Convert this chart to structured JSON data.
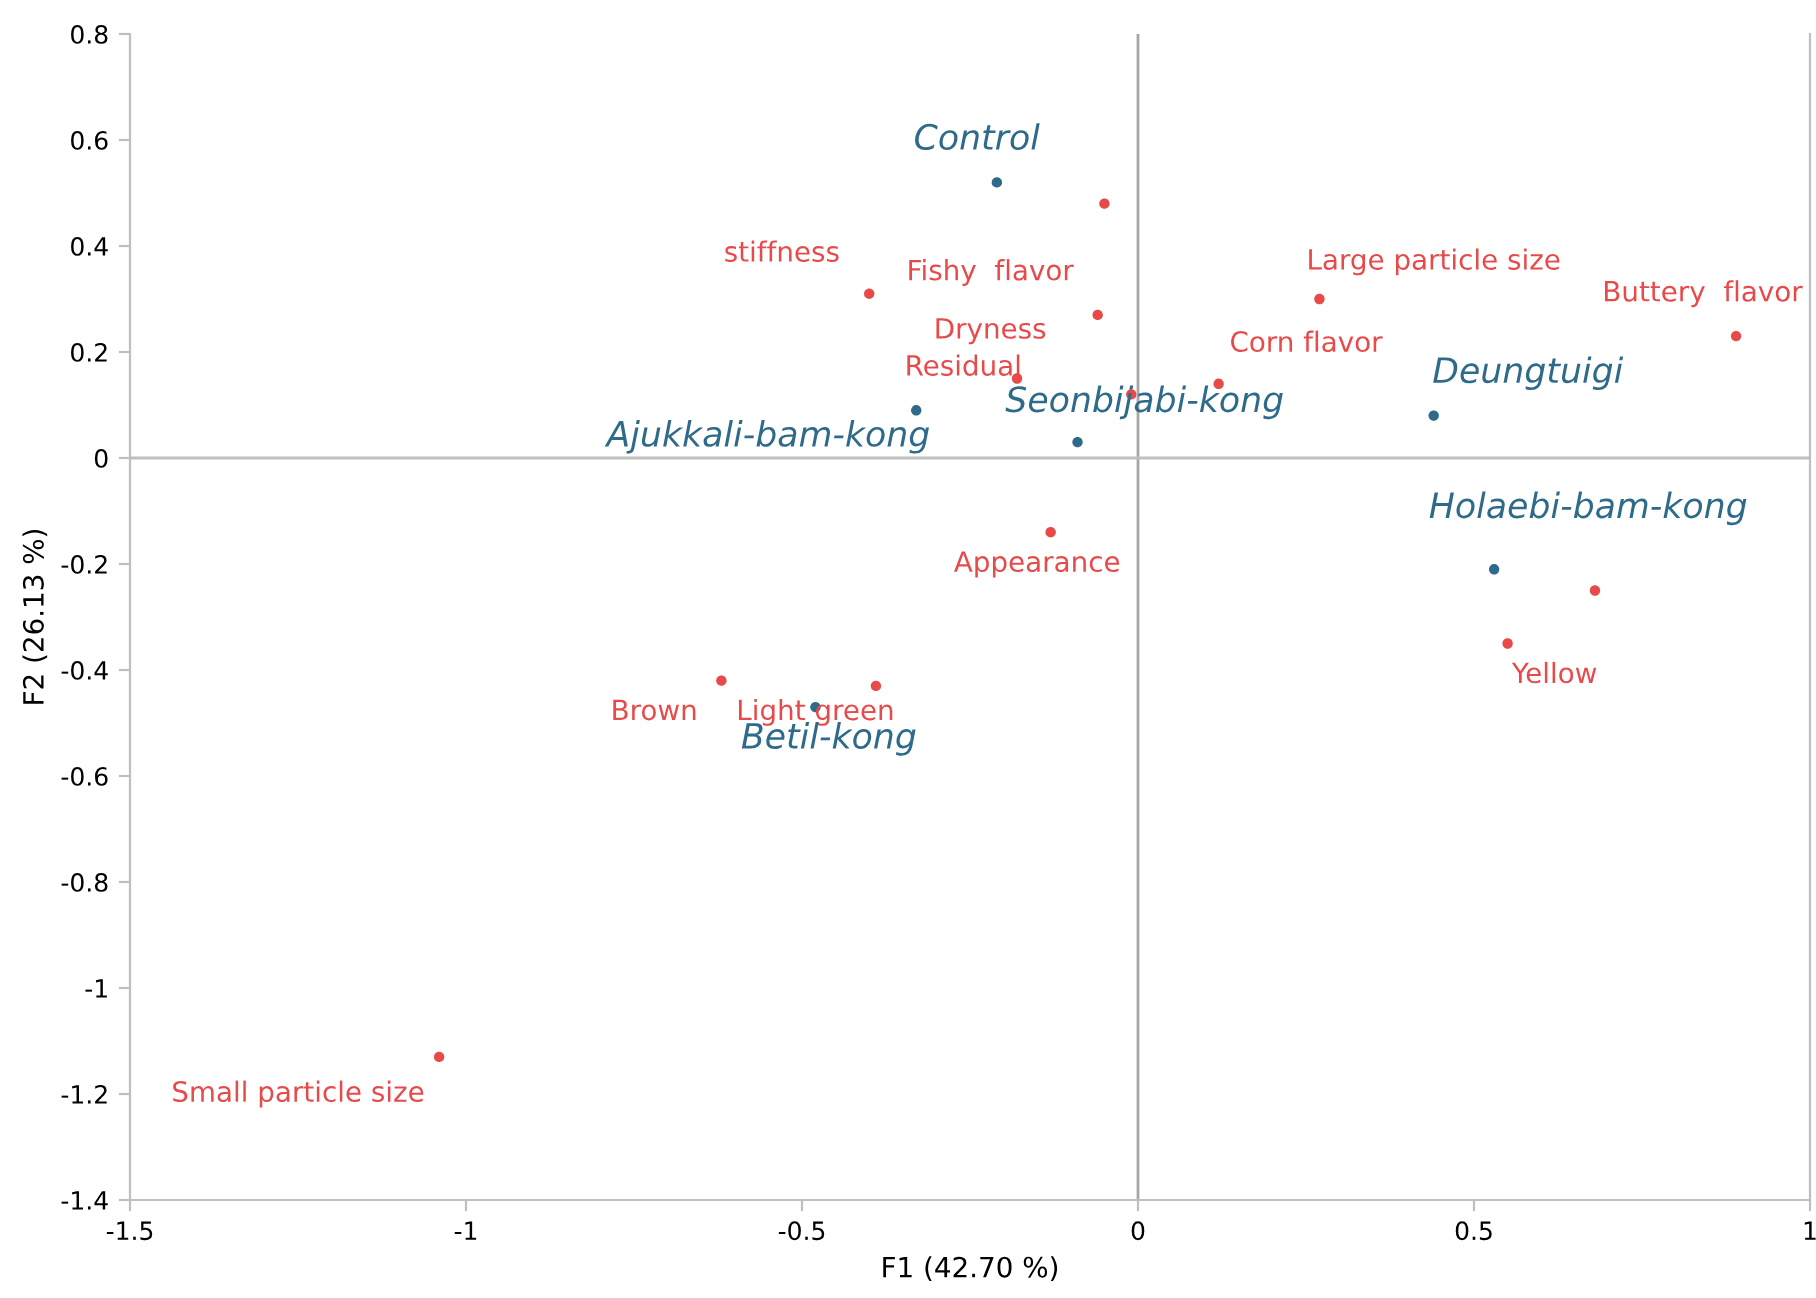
{
  "chart_data": {
    "type": "scatter",
    "xlabel": "F1 (42.70 %)",
    "ylabel": "F2 (26.13 %)",
    "xlim": [
      -1.5,
      1
    ],
    "xticks": [
      -1.5,
      -1,
      -0.5,
      0,
      0.5,
      1
    ],
    "ylim": [
      -1.4,
      0.8
    ],
    "yticks": [
      -1.4,
      -1.2,
      -1,
      -0.8,
      -0.6,
      -0.4,
      -0.2,
      0,
      0.2,
      0.4,
      0.6,
      0.8
    ],
    "grid": false,
    "legend": false,
    "marker": "circle",
    "ref_lines": [
      {
        "axis": "x",
        "value": 0,
        "color": "#a6a6a6"
      },
      {
        "axis": "y",
        "value": 0,
        "color": "#bfbfbf"
      }
    ],
    "series": [
      {
        "color": "#e84a4a",
        "x": [
          -0.05,
          -0.4,
          -0.06,
          -0.18,
          -0.01,
          0.12,
          0.27,
          0.89,
          -0.13,
          -0.62,
          -0.39,
          0.55,
          0.68,
          -1.04
        ],
        "values": [
          0.48,
          0.31,
          0.27,
          0.15,
          0.12,
          0.14,
          0.3,
          0.23,
          -0.14,
          -0.42,
          -0.43,
          -0.35,
          -0.25,
          -1.13
        ]
      },
      {
        "color": "#2e6a8a",
        "x": [
          -0.21,
          -0.33,
          -0.09,
          0.44,
          0.53,
          -0.48
        ],
        "values": [
          0.52,
          0.09,
          0.03,
          0.08,
          -0.21,
          -0.47
        ]
      }
    ],
    "annotations": [
      {
        "text": "Control",
        "x": -0.21,
        "y": 0.52
      },
      {
        "text": "stiffness",
        "x": -0.4,
        "y": 0.31
      },
      {
        "text": "Fishy  flavor",
        "x": -0.06,
        "y": 0.27
      },
      {
        "text": "Dryness",
        "x": -0.06,
        "y": 0.27
      },
      {
        "text": "Residual",
        "x": -0.18,
        "y": 0.15
      },
      {
        "text": "Seonbijabi-kong",
        "x": -0.09,
        "y": 0.03
      },
      {
        "text": "Ajukkali-bam-kong",
        "x": -0.33,
        "y": 0.09
      },
      {
        "text": "Large particle size",
        "x": 0.27,
        "y": 0.3
      },
      {
        "text": "Corn flavor",
        "x": 0.12,
        "y": 0.14
      },
      {
        "text": "Buttery  flavor",
        "x": 0.89,
        "y": 0.23
      },
      {
        "text": "Deungtuigi",
        "x": 0.44,
        "y": 0.08
      },
      {
        "text": "Holaebi-bam-kong",
        "x": 0.53,
        "y": -0.21
      },
      {
        "text": "Appearance",
        "x": -0.13,
        "y": -0.14
      },
      {
        "text": "Brown",
        "x": -0.62,
        "y": -0.42
      },
      {
        "text": "Light green",
        "x": -0.39,
        "y": -0.43
      },
      {
        "text": "Betil-kong",
        "x": -0.48,
        "y": -0.47
      },
      {
        "text": "Yellow",
        "x": 0.55,
        "y": -0.35
      },
      {
        "text": "Small particle size",
        "x": -1.04,
        "y": -1.13
      }
    ]
  }
}
